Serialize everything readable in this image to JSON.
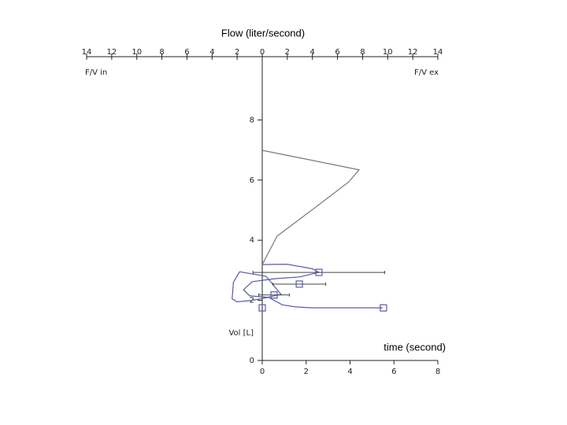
{
  "chart_data": {
    "type": "flow-volume",
    "title": "Flow (liter/second)",
    "flow_in_label": "F/V in",
    "flow_ex_label": "F/V ex",
    "ylabel": "Vol [L]",
    "time_label": "time (second)",
    "xlim": [
      -14,
      14
    ],
    "xticks": [
      {
        "value": -14,
        "label": "14"
      },
      {
        "value": -12,
        "label": "12"
      },
      {
        "value": -10,
        "label": "10"
      },
      {
        "value": -8,
        "label": "8"
      },
      {
        "value": -6,
        "label": "6"
      },
      {
        "value": -4,
        "label": "4"
      },
      {
        "value": -2,
        "label": "2"
      },
      0,
      2,
      4,
      6,
      8,
      10,
      12,
      14
    ],
    "ylim": [
      0,
      10
    ],
    "yticks": [
      0,
      2,
      4,
      6,
      8
    ],
    "timelim": [
      0,
      8
    ],
    "timeticks": [
      0,
      2,
      4,
      6,
      8
    ],
    "series": [
      {
        "color": "#777777",
        "x": [
          0,
          7.72,
          6.9,
          4.2,
          1.19,
          0
        ],
        "values": [
          6.99,
          6.34,
          5.94,
          5.08,
          4.14,
          3.19
        ]
      },
      {
        "color": "#5a5aa8",
        "x": [
          0,
          2.0,
          4.0,
          4.52,
          3.0,
          1.0,
          -0.8,
          -1.5,
          -1.0,
          0.4,
          1.5,
          0.3,
          -1.8,
          -2.3,
          -2.4,
          -2.0,
          -0.8,
          0.5,
          1.6,
          2.7,
          4.0,
          9.6
        ],
        "values": [
          3.19,
          3.2,
          3.05,
          2.93,
          2.78,
          2.72,
          2.62,
          2.35,
          2.15,
          2.1,
          2.2,
          2.8,
          2.95,
          2.6,
          2.05,
          1.95,
          2.0,
          2.1,
          1.85,
          1.78,
          1.75,
          1.75
        ]
      }
    ],
    "time_series": {
      "color": "#5a5aa8",
      "x": [
        0,
        0.54,
        1.69,
        2.58,
        5.52
      ],
      "values": [
        1.75,
        2.18,
        2.54,
        2.93,
        1.75
      ],
      "xerr": [
        0,
        0.7,
        1.2,
        3.0,
        0
      ]
    }
  }
}
